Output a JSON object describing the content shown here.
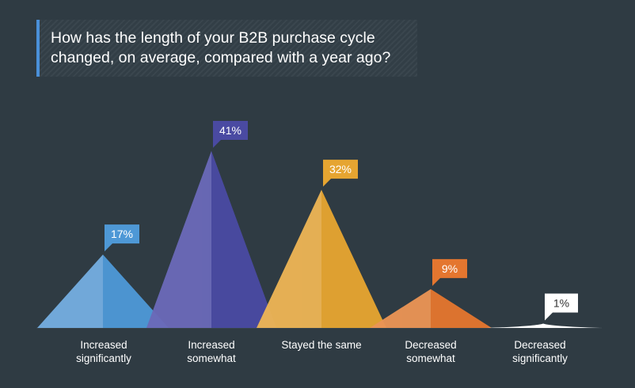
{
  "title": "How has the length of your B2B purchase cycle\nchanged, on average, compared with a year ago?",
  "chart_data": {
    "type": "bar",
    "style": "overlapping triangles",
    "title": "How has the length of your B2B purchase cycle changed, on average, compared with a year ago?",
    "categories": [
      "Increased\nsignificantly",
      "Increased\nsomewhat",
      "Stayed the same",
      "Decreased\nsomewhat",
      "Decreased\nsignificantly"
    ],
    "values": [
      17,
      41,
      32,
      9,
      1
    ],
    "value_labels": [
      "17%",
      "41%",
      "32%",
      "9%",
      "1%"
    ],
    "unit": "%",
    "ylim": [
      0,
      41
    ],
    "grid": false,
    "colors": [
      {
        "light": "#74ade0",
        "dark": "#4e98d6",
        "label_bg": "#4e98d6",
        "label_fg": "#ffffff"
      },
      {
        "light": "#6a69b8",
        "dark": "#4a4aa2",
        "label_bg": "#4a4aa2",
        "label_fg": "#ffffff"
      },
      {
        "light": "#ecb455",
        "dark": "#e6a531",
        "label_bg": "#e6a531",
        "label_fg": "#ffffff"
      },
      {
        "light": "#ea9455",
        "dark": "#e4762f",
        "label_bg": "#e4762f",
        "label_fg": "#ffffff"
      },
      {
        "light": "#ffffff",
        "dark": "#ffffff",
        "label_bg": "#ffffff",
        "label_fg": "#333333"
      }
    ]
  }
}
